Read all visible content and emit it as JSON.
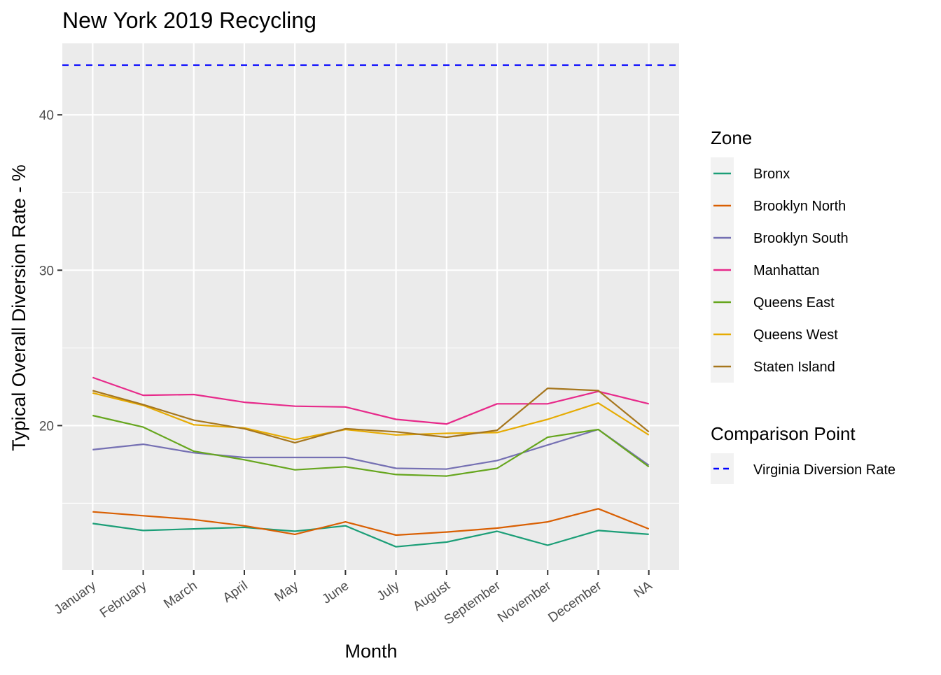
{
  "chart_data": {
    "type": "line",
    "title": "New York 2019 Recycling",
    "xlabel": "Month",
    "ylabel": "Typical Overall Diversion Rate - %",
    "categories": [
      "January",
      "February",
      "March",
      "April",
      "May",
      "June",
      "July",
      "August",
      "September",
      "November",
      "December",
      "NA"
    ],
    "ylim": [
      10.7,
      44.6
    ],
    "yticks": [
      20,
      30,
      40
    ],
    "ytick_labels": [
      "20",
      "30",
      "40"
    ],
    "grid": true,
    "legend_position": "right",
    "legend_title": "Zone",
    "series": [
      {
        "name": "Bronx",
        "color": "#1B9E77",
        "values": [
          13.7,
          13.25,
          13.35,
          13.45,
          13.2,
          13.55,
          12.2,
          12.5,
          13.2,
          12.3,
          13.25,
          13.0
        ]
      },
      {
        "name": "Brooklyn North",
        "color": "#D95F02",
        "values": [
          14.45,
          14.2,
          13.95,
          13.55,
          13.0,
          13.8,
          12.95,
          13.15,
          13.4,
          13.8,
          14.65,
          13.35
        ]
      },
      {
        "name": "Brooklyn South",
        "color": "#7570B3",
        "values": [
          18.45,
          18.8,
          18.25,
          17.95,
          17.95,
          17.95,
          17.25,
          17.2,
          17.75,
          18.75,
          19.75,
          17.45
        ]
      },
      {
        "name": "Manhattan",
        "color": "#E7298A",
        "values": [
          23.1,
          21.95,
          22.0,
          21.5,
          21.25,
          21.2,
          20.4,
          20.1,
          21.4,
          21.4,
          22.2,
          21.4
        ]
      },
      {
        "name": "Queens East",
        "color": "#66A61E",
        "values": [
          20.65,
          19.9,
          18.35,
          17.8,
          17.15,
          17.35,
          16.85,
          16.75,
          17.25,
          19.25,
          19.75,
          17.35
        ]
      },
      {
        "name": "Queens West",
        "color": "#E6AB02",
        "values": [
          22.1,
          21.3,
          20.05,
          19.85,
          19.1,
          19.75,
          19.4,
          19.5,
          19.55,
          20.4,
          21.45,
          19.4
        ]
      },
      {
        "name": "Staten Island",
        "color": "#A6761D",
        "values": [
          22.25,
          21.35,
          20.35,
          19.8,
          18.9,
          19.8,
          19.6,
          19.25,
          19.7,
          22.4,
          22.25,
          19.6
        ]
      }
    ],
    "reference_line": {
      "legend_title": "Comparison Point",
      "name": "Virginia Diversion Rate",
      "value": 43.2,
      "color": "#0000FF",
      "style": "dashed"
    }
  }
}
